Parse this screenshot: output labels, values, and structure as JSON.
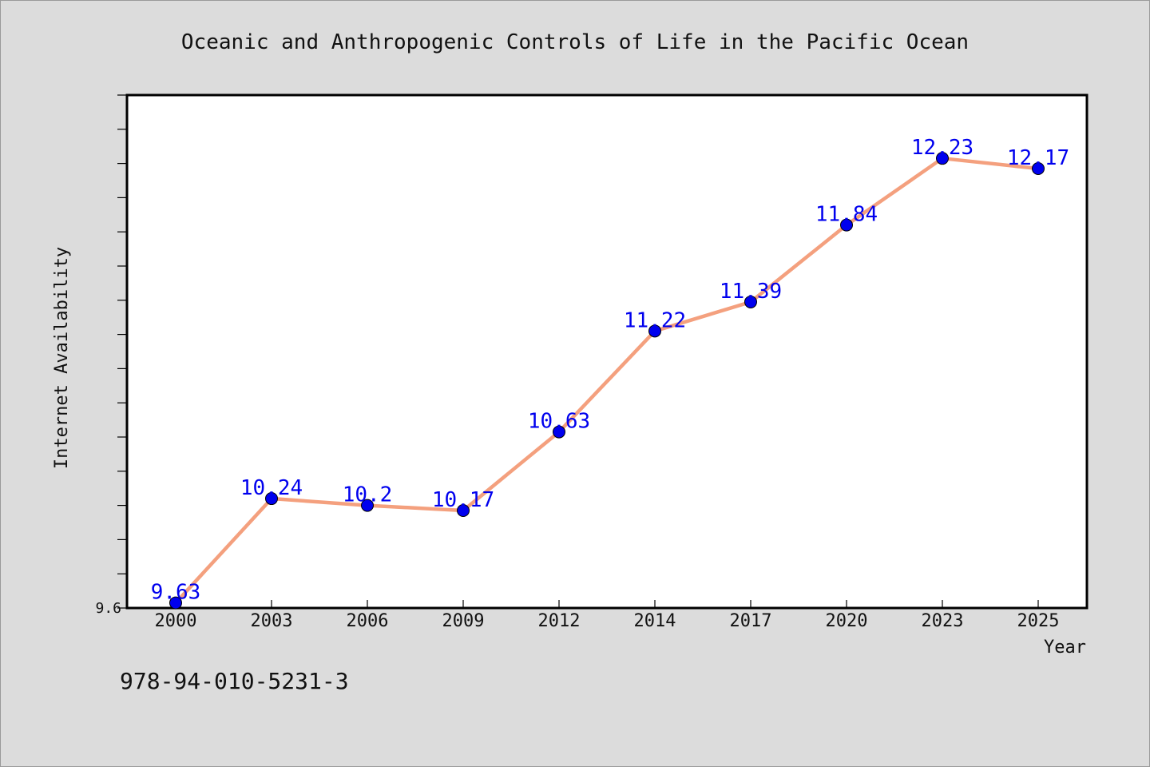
{
  "chart_data": {
    "type": "line",
    "title": "Oceanic and Anthropogenic Controls of Life in the Pacific Ocean",
    "xlabel": "Year",
    "ylabel": "Internet Availability",
    "categories": [
      "2000",
      "2003",
      "2006",
      "2009",
      "2012",
      "2014",
      "2017",
      "2020",
      "2023",
      "2025"
    ],
    "series": [
      {
        "values": [
          9.63,
          10.24,
          10.2,
          10.17,
          10.63,
          11.22,
          11.39,
          11.84,
          12.23,
          12.17
        ],
        "data_labels": [
          "9.63",
          "10.24",
          "10.2",
          "10.17",
          "10.63",
          "11.22",
          "11.39",
          "11.84",
          "12.23",
          "12.17"
        ]
      }
    ],
    "ylim": [
      9.6,
      12.6
    ],
    "yticks_labeled": [
      "9.6"
    ],
    "grid": false,
    "colors": {
      "line": "#f4a07e",
      "marker": "#0000ee",
      "data_label": "#0000ee",
      "plot_background": "#ffffff",
      "figure_background": "#dcdcdc"
    }
  },
  "footer": {
    "isbn": "978-94-010-5231-3"
  }
}
